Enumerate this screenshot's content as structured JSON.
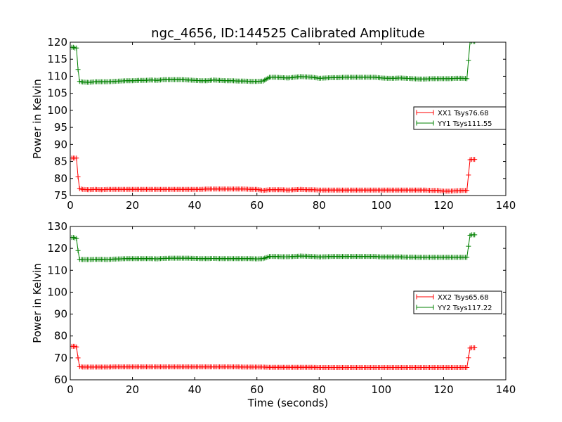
{
  "title": "ngc_4656, ID:144525 Calibrated Amplitude",
  "chart_data": [
    {
      "type": "line",
      "ylabel": "Power in Kelvin",
      "xlabel": "",
      "xlim": [
        0,
        140
      ],
      "ylim": [
        75,
        120
      ],
      "xticks": [
        0,
        20,
        40,
        60,
        80,
        100,
        120,
        140
      ],
      "yticks": [
        75,
        80,
        85,
        90,
        95,
        100,
        105,
        110,
        115,
        120
      ],
      "grid": false,
      "legend_position": "center-right",
      "series": [
        {
          "name": "XX1 Tsys76.68",
          "color": "#ff0000",
          "x": [
            0.5,
            1.0,
            1.5,
            2.0,
            2.5,
            3.0,
            4,
            6,
            8,
            10,
            12,
            14,
            16,
            18,
            20,
            22,
            24,
            26,
            28,
            30,
            32,
            34,
            36,
            38,
            40,
            42,
            44,
            46,
            48,
            50,
            52,
            54,
            56,
            58,
            60,
            62,
            64,
            66,
            68,
            70,
            72,
            74,
            76,
            78,
            80,
            82,
            84,
            86,
            88,
            90,
            92,
            94,
            96,
            98,
            100,
            102,
            104,
            106,
            108,
            110,
            112,
            114,
            116,
            118,
            120,
            122,
            124,
            126,
            127.5,
            128.5,
            129.0,
            129.5,
            130.0
          ],
          "y": [
            86.0,
            86.0,
            86.0,
            86.0,
            80.5,
            77.0,
            76.8,
            76.7,
            76.8,
            76.7,
            76.8,
            76.8,
            76.8,
            76.8,
            76.8,
            76.8,
            76.8,
            76.8,
            76.8,
            76.8,
            76.8,
            76.8,
            76.8,
            76.8,
            76.8,
            76.8,
            76.9,
            76.9,
            76.9,
            76.9,
            76.9,
            76.9,
            76.9,
            76.8,
            76.8,
            76.5,
            76.7,
            76.7,
            76.7,
            76.6,
            76.7,
            76.8,
            76.7,
            76.7,
            76.6,
            76.6,
            76.6,
            76.6,
            76.6,
            76.6,
            76.6,
            76.6,
            76.6,
            76.6,
            76.6,
            76.6,
            76.6,
            76.6,
            76.6,
            76.6,
            76.6,
            76.6,
            76.5,
            76.5,
            76.3,
            76.3,
            76.4,
            76.5,
            76.5,
            85.5,
            85.6,
            85.6,
            85.6
          ]
        },
        {
          "name": "YY1 Tsys111.55",
          "color": "#008000",
          "x": [
            0.5,
            1.0,
            1.5,
            2.0,
            2.5,
            3.0,
            4,
            6,
            8,
            10,
            12,
            14,
            16,
            18,
            20,
            22,
            24,
            26,
            28,
            30,
            32,
            34,
            36,
            38,
            40,
            42,
            44,
            46,
            48,
            50,
            52,
            54,
            56,
            58,
            60,
            62,
            64,
            66,
            68,
            70,
            72,
            74,
            76,
            78,
            80,
            82,
            84,
            86,
            88,
            90,
            92,
            94,
            96,
            98,
            100,
            102,
            104,
            106,
            108,
            110,
            112,
            114,
            116,
            118,
            120,
            122,
            124,
            126,
            127.5,
            128.5,
            129.0,
            129.5,
            130.0
          ],
          "y": [
            118.5,
            118.5,
            118.3,
            118.3,
            112.0,
            108.5,
            108.3,
            108.2,
            108.4,
            108.4,
            108.4,
            108.5,
            108.6,
            108.7,
            108.7,
            108.8,
            108.8,
            108.9,
            108.8,
            109.0,
            109.0,
            109.0,
            109.0,
            108.9,
            108.8,
            108.7,
            108.7,
            108.9,
            108.8,
            108.7,
            108.7,
            108.6,
            108.6,
            108.5,
            108.5,
            108.6,
            109.7,
            109.7,
            109.6,
            109.5,
            109.7,
            109.9,
            109.8,
            109.7,
            109.4,
            109.5,
            109.6,
            109.6,
            109.7,
            109.7,
            109.7,
            109.7,
            109.7,
            109.7,
            109.5,
            109.4,
            109.4,
            109.5,
            109.4,
            109.3,
            109.2,
            109.2,
            109.3,
            109.3,
            109.3,
            109.3,
            109.4,
            109.4,
            109.3,
            120.0,
            120.2,
            120.2,
            120.2
          ]
        }
      ]
    },
    {
      "type": "line",
      "ylabel": "Power in Kelvin",
      "xlabel": "Time (seconds)",
      "xlim": [
        0,
        140
      ],
      "ylim": [
        60,
        130
      ],
      "xticks": [
        0,
        20,
        40,
        60,
        80,
        100,
        120,
        140
      ],
      "yticks": [
        60,
        70,
        80,
        90,
        100,
        110,
        120,
        130
      ],
      "grid": false,
      "legend_position": "center-right",
      "series": [
        {
          "name": "XX2 Tsys65.68",
          "color": "#ff0000",
          "x": [
            0.5,
            1.0,
            1.5,
            2.0,
            2.5,
            3.0,
            4,
            6,
            8,
            10,
            12,
            14,
            16,
            18,
            20,
            22,
            24,
            26,
            28,
            30,
            32,
            34,
            36,
            38,
            40,
            42,
            44,
            46,
            48,
            50,
            52,
            54,
            56,
            58,
            60,
            62,
            64,
            66,
            68,
            70,
            72,
            74,
            76,
            78,
            80,
            82,
            84,
            86,
            88,
            90,
            92,
            94,
            96,
            98,
            100,
            102,
            104,
            106,
            108,
            110,
            112,
            114,
            116,
            118,
            120,
            122,
            124,
            126,
            127.5,
            128.5,
            129.0,
            129.5,
            130.0
          ],
          "y": [
            75.3,
            75.3,
            75.3,
            75.0,
            70.0,
            66.0,
            65.8,
            65.8,
            65.8,
            65.8,
            65.8,
            65.9,
            65.9,
            65.9,
            65.9,
            65.9,
            65.9,
            65.9,
            65.9,
            65.9,
            65.9,
            65.9,
            65.9,
            65.9,
            65.9,
            65.9,
            65.9,
            65.9,
            65.9,
            65.9,
            65.9,
            65.9,
            65.8,
            65.8,
            65.8,
            65.8,
            65.7,
            65.7,
            65.7,
            65.7,
            65.7,
            65.7,
            65.7,
            65.7,
            65.6,
            65.6,
            65.6,
            65.6,
            65.6,
            65.6,
            65.6,
            65.6,
            65.6,
            65.6,
            65.6,
            65.6,
            65.6,
            65.6,
            65.6,
            65.6,
            65.6,
            65.6,
            65.6,
            65.6,
            65.6,
            65.6,
            65.6,
            65.6,
            65.6,
            74.5,
            74.6,
            74.6,
            74.6
          ]
        },
        {
          "name": "YY2 Tsys117.22",
          "color": "#008000",
          "x": [
            0.5,
            1.0,
            1.5,
            2.0,
            2.5,
            3.0,
            4,
            6,
            8,
            10,
            12,
            14,
            16,
            18,
            20,
            22,
            24,
            26,
            28,
            30,
            32,
            34,
            36,
            38,
            40,
            42,
            44,
            46,
            48,
            50,
            52,
            54,
            56,
            58,
            60,
            62,
            64,
            66,
            68,
            70,
            72,
            74,
            76,
            78,
            80,
            82,
            84,
            86,
            88,
            90,
            92,
            94,
            96,
            98,
            100,
            102,
            104,
            106,
            108,
            110,
            112,
            114,
            116,
            118,
            120,
            122,
            124,
            126,
            127.5,
            128.5,
            129.0,
            129.5,
            130.0
          ],
          "y": [
            125.0,
            125.0,
            124.8,
            124.5,
            119.0,
            115.0,
            114.9,
            114.9,
            115.0,
            115.0,
            114.9,
            115.1,
            115.2,
            115.3,
            115.3,
            115.3,
            115.3,
            115.3,
            115.2,
            115.4,
            115.5,
            115.5,
            115.5,
            115.5,
            115.4,
            115.3,
            115.3,
            115.4,
            115.3,
            115.3,
            115.3,
            115.3,
            115.3,
            115.3,
            115.2,
            115.3,
            116.3,
            116.3,
            116.2,
            116.2,
            116.3,
            116.5,
            116.4,
            116.3,
            116.1,
            116.2,
            116.3,
            116.3,
            116.3,
            116.3,
            116.3,
            116.3,
            116.3,
            116.3,
            116.1,
            116.1,
            116.1,
            116.1,
            116.0,
            116.0,
            115.9,
            115.9,
            115.9,
            115.9,
            115.9,
            115.9,
            115.9,
            115.9,
            115.9,
            126.0,
            126.2,
            126.2,
            126.2
          ]
        }
      ]
    }
  ]
}
